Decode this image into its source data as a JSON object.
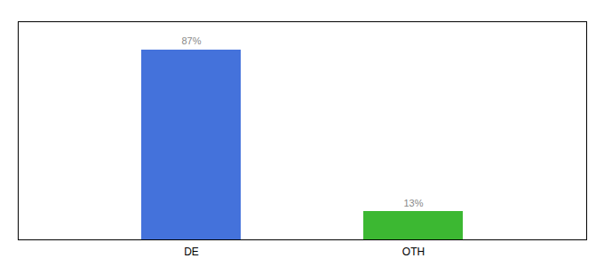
{
  "chart_data": {
    "type": "bar",
    "categories": [
      "DE",
      "OTH"
    ],
    "values": [
      87,
      13
    ],
    "value_labels": [
      "87%",
      "13%"
    ],
    "colors": [
      "#4472db",
      "#3cb832"
    ],
    "ylim": [
      0,
      100
    ],
    "data_labels": true,
    "tick_labels": "x"
  }
}
